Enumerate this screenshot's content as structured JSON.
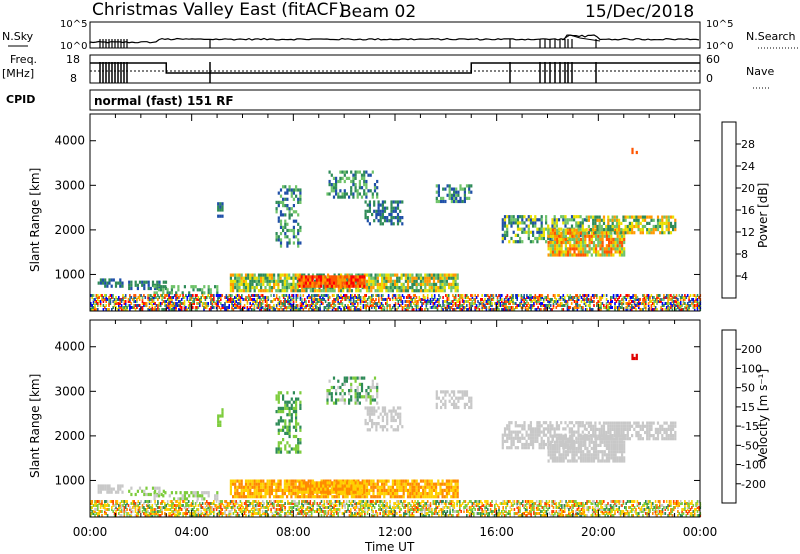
{
  "header": {
    "title": "Christmas Valley East (fitACF)",
    "beam": "Beam 02",
    "date": "15/Dec/2018"
  },
  "param_panels": {
    "nsky": {
      "left_label": "N.Sky",
      "right_label": "N.Search",
      "left_ticks": [
        "10^5",
        "10^0"
      ],
      "right_ticks": [
        "10^5",
        "10^0"
      ]
    },
    "freq": {
      "left_label_1": "Freq.",
      "left_label_2": "[MHz]",
      "left_ticks": [
        "18",
        "8"
      ],
      "right_label": "Nave",
      "right_ticks": [
        "60",
        "0"
      ]
    },
    "cpid": {
      "label": "CPID",
      "text": "normal (fast) 151 RF"
    }
  },
  "chart_data": [
    {
      "type": "heatmap",
      "name": "power",
      "ylabel": "Slant Range [km]",
      "yticks": [
        1000,
        2000,
        3000,
        4000
      ],
      "ylim": [
        180,
        4600
      ],
      "xlim": [
        0,
        24
      ],
      "colorbar": {
        "label": "Power [dB]",
        "ticks": [
          "28",
          "24",
          "20",
          "16",
          "12",
          "8",
          "4"
        ],
        "colors": [
          "#0000ff",
          "#1f4fa8",
          "#2e8b57",
          "#6fc36a",
          "#e8e000",
          "#ff9900",
          "#ff5500",
          "#ff0000"
        ]
      }
    },
    {
      "type": "heatmap",
      "name": "velocity",
      "ylabel": "Slant Range [km]",
      "yticks": [
        1000,
        2000,
        3000,
        4000
      ],
      "ylim": [
        180,
        4600
      ],
      "xlim": [
        0,
        24
      ],
      "colorbar": {
        "label": "Velocity [m s⁻¹]",
        "ticks": [
          "200",
          "100",
          "50",
          "15",
          "-15",
          "-50",
          "-100",
          "-200"
        ],
        "colors": [
          "#1010c0",
          "#2a6fb0",
          "#2e8b57",
          "#7dcc3c",
          "#c8c8c8",
          "#ffd000",
          "#ff8a00",
          "#ff4000",
          "#e00000"
        ]
      }
    }
  ],
  "xaxis": {
    "ticks": [
      "00:00",
      "04:00",
      "08:00",
      "12:00",
      "16:00",
      "20:00",
      "00:00"
    ],
    "label": "Time UT"
  }
}
